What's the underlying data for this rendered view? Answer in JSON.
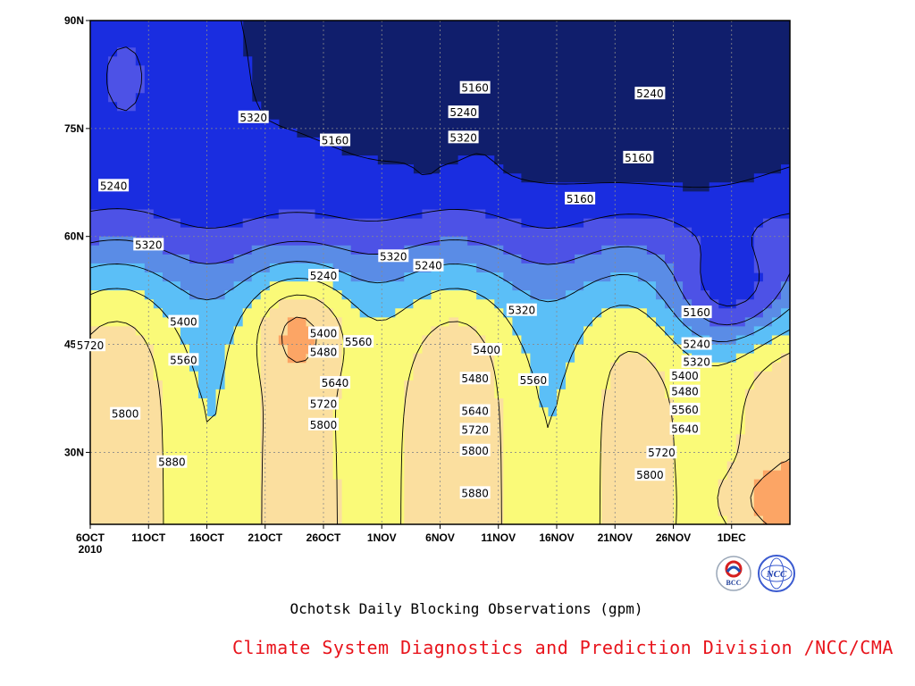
{
  "chart_data": {
    "type": "contour",
    "title": "Ochotsk Daily Blocking Observations (gpm)",
    "credit": "Climate System Diagnostics and Prediction Division /NCC/CMA",
    "x_ticks": [
      "6OCT",
      "11OCT",
      "16OCT",
      "21OCT",
      "26OCT",
      "1NOV",
      "6NOV",
      "11NOV",
      "16NOV",
      "21NOV",
      "26NOV",
      "1DEC"
    ],
    "x_year": "2010",
    "y_ticks": [
      "30N",
      "45N",
      "60N",
      "75N",
      "90N"
    ],
    "x_range": [
      "2010-10-06",
      "2010-12-05"
    ],
    "y_range": [
      20,
      90
    ],
    "contour_levels": [
      5160,
      5240,
      5320,
      5400,
      5480,
      5560,
      5640,
      5720,
      5800,
      5880
    ],
    "fill_colors": [
      "#101e6c",
      "#1a2de0",
      "#4d52e6",
      "#5a8ce6",
      "#5bbff7",
      "#fafa78",
      "#fbdf9f",
      "#fca565",
      "#fa774e",
      "#f76d78",
      "#f23e4c"
    ],
    "contour_labels": [
      {
        "text": "5160",
        "date": "2010-11-08",
        "lat": 80.6
      },
      {
        "text": "5240",
        "date": "2010-11-07",
        "lat": 77.2
      },
      {
        "text": "5320",
        "date": "2010-11-07",
        "lat": 73.7
      },
      {
        "text": "5240",
        "date": "2010-11-23",
        "lat": 79.8
      },
      {
        "text": "5160",
        "date": "2010-11-22",
        "lat": 70.9
      },
      {
        "text": "5160",
        "date": "2010-11-17",
        "lat": 65.2
      },
      {
        "text": "5160",
        "date": "2010-10-27",
        "lat": 73.3
      },
      {
        "text": "5320",
        "date": "2010-10-20",
        "lat": 76.5
      },
      {
        "text": "5240",
        "date": "2010-10-08",
        "lat": 67.0
      },
      {
        "text": "5320",
        "date": "2010-10-11",
        "lat": 58.8
      },
      {
        "text": "5240",
        "date": "2010-10-26",
        "lat": 54.5
      },
      {
        "text": "5320",
        "date": "2010-11-01",
        "lat": 57.2
      },
      {
        "text": "5240",
        "date": "2010-11-04",
        "lat": 55.9
      },
      {
        "text": "5320",
        "date": "2010-11-12",
        "lat": 49.7
      },
      {
        "text": "5400",
        "date": "2010-10-14",
        "lat": 48.1
      },
      {
        "text": "5560",
        "date": "2010-10-14",
        "lat": 42.8
      },
      {
        "text": "5720",
        "date": "2010-10-06",
        "lat": 44.8
      },
      {
        "text": "5800",
        "date": "2010-10-09",
        "lat": 35.3
      },
      {
        "text": "5880",
        "date": "2010-10-13",
        "lat": 28.6
      },
      {
        "text": "5400",
        "date": "2010-10-26",
        "lat": 46.5
      },
      {
        "text": "5480",
        "date": "2010-10-26",
        "lat": 43.9
      },
      {
        "text": "5560",
        "date": "2010-10-29",
        "lat": 45.3
      },
      {
        "text": "5640",
        "date": "2010-10-27",
        "lat": 39.6
      },
      {
        "text": "5720",
        "date": "2010-10-26",
        "lat": 36.7
      },
      {
        "text": "5800",
        "date": "2010-10-26",
        "lat": 33.8
      },
      {
        "text": "5400",
        "date": "2010-11-09",
        "lat": 44.2
      },
      {
        "text": "5480",
        "date": "2010-11-08",
        "lat": 40.2
      },
      {
        "text": "5560",
        "date": "2010-11-13",
        "lat": 40.0
      },
      {
        "text": "5640",
        "date": "2010-11-08",
        "lat": 35.7
      },
      {
        "text": "5720",
        "date": "2010-11-08",
        "lat": 33.1
      },
      {
        "text": "5800",
        "date": "2010-11-08",
        "lat": 30.2
      },
      {
        "text": "5880",
        "date": "2010-11-08",
        "lat": 24.3
      },
      {
        "text": "5160",
        "date": "2010-11-27",
        "lat": 49.4
      },
      {
        "text": "5240",
        "date": "2010-11-27",
        "lat": 45.0
      },
      {
        "text": "5320",
        "date": "2010-11-27",
        "lat": 42.5
      },
      {
        "text": "5400",
        "date": "2010-11-26",
        "lat": 40.6
      },
      {
        "text": "5480",
        "date": "2010-11-26",
        "lat": 38.4
      },
      {
        "text": "5560",
        "date": "2010-11-26",
        "lat": 35.9
      },
      {
        "text": "5640",
        "date": "2010-11-26",
        "lat": 33.2
      },
      {
        "text": "5720",
        "date": "2010-11-24",
        "lat": 29.9
      },
      {
        "text": "5800",
        "date": "2010-11-23",
        "lat": 26.8
      }
    ]
  },
  "logos": {
    "left_text": "BCC",
    "right_text": "NCC"
  }
}
